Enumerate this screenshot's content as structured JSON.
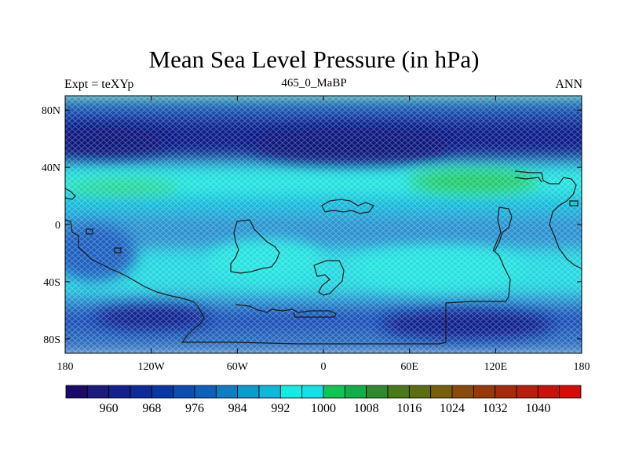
{
  "title": "Mean Sea Level Pressure (in hPa)",
  "left_string": "Expt = teXYp",
  "center_string": "465_0_MaBP",
  "right_string": "ANN",
  "axes": {
    "x_ticks": [
      {
        "value": -180,
        "label": "180"
      },
      {
        "value": -120,
        "label": "120W"
      },
      {
        "value": -60,
        "label": "60W"
      },
      {
        "value": 0,
        "label": "0"
      },
      {
        "value": 60,
        "label": "60E"
      },
      {
        "value": 120,
        "label": "120E"
      },
      {
        "value": 180,
        "label": "180"
      }
    ],
    "y_ticks": [
      {
        "value": 80,
        "label": "80N"
      },
      {
        "value": 40,
        "label": "40N"
      },
      {
        "value": 0,
        "label": "0"
      },
      {
        "value": -40,
        "label": "40S"
      },
      {
        "value": -80,
        "label": "80S"
      }
    ],
    "lon_range": [
      -180,
      180
    ],
    "lat_range": [
      -90,
      90
    ]
  },
  "colorbar": {
    "colors": [
      "#1a0a6b",
      "#1a1a80",
      "#14208f",
      "#0f2a9c",
      "#0a37a8",
      "#0b4db5",
      "#0a62bd",
      "#0c7ec6",
      "#0a9bd0",
      "#0fb8db",
      "#13ece3",
      "#14e0e8",
      "#10c553",
      "#0fb04a",
      "#2e8a2a",
      "#4a7a18",
      "#5c6e10",
      "#7a5f0a",
      "#8a4a08",
      "#9a3808",
      "#a82a0a",
      "#b81e0c",
      "#c8120e",
      "#d80a0a"
    ],
    "labels": [
      {
        "after_box": 1,
        "text": "960"
      },
      {
        "after_box": 3,
        "text": "968"
      },
      {
        "after_box": 5,
        "text": "976"
      },
      {
        "after_box": 7,
        "text": "984"
      },
      {
        "after_box": 9,
        "text": "992"
      },
      {
        "after_box": 11,
        "text": "1000"
      },
      {
        "after_box": 13,
        "text": "1008"
      },
      {
        "after_box": 15,
        "text": "1016"
      },
      {
        "after_box": 17,
        "text": "1024"
      },
      {
        "after_box": 19,
        "text": "1032"
      },
      {
        "after_box": 21,
        "text": "1040"
      }
    ]
  },
  "field_colors": {
    "deep_low": "#0d1a8a",
    "low": "#1f4fb8",
    "mid_low": "#2a78c8",
    "mid": "#19a6d8",
    "high": "#24e3e0",
    "green_high": "#20c860"
  },
  "bands": [
    {
      "lat_top": 90,
      "lat_bottom": 84,
      "color": "#1aa6a0"
    },
    {
      "lat_top": 84,
      "lat_bottom": 72,
      "color": "#1f4fb8"
    },
    {
      "lat_top": 72,
      "lat_bottom": 44,
      "color": "#0d1a8a"
    },
    {
      "lat_top": 44,
      "lat_bottom": 38,
      "color": "#2a78c8"
    },
    {
      "lat_top": 38,
      "lat_bottom": 18,
      "color": "#24e3e0"
    },
    {
      "lat_top": 18,
      "lat_bottom": 4,
      "color": "#19b8dc"
    },
    {
      "lat_top": 4,
      "lat_bottom": -20,
      "color": "#2a90d0"
    },
    {
      "lat_top": -20,
      "lat_bottom": -50,
      "color": "#24d8e0"
    },
    {
      "lat_top": -50,
      "lat_bottom": -60,
      "color": "#2a90d0"
    },
    {
      "lat_top": -60,
      "lat_bottom": -78,
      "color": "#1f4fb8"
    },
    {
      "lat_top": -78,
      "lat_bottom": -90,
      "color": "#2a70c0"
    }
  ],
  "highs": [
    {
      "lon": 105,
      "lat": 30,
      "rlon": 45,
      "rlat": 8,
      "color": "#20c860"
    },
    {
      "lon": 105,
      "lat": -32,
      "rlon": 30,
      "rlat": 8,
      "color": "#20c860"
    },
    {
      "lon": -140,
      "lat": 26,
      "rlon": 40,
      "rlat": 4,
      "color": "#2ad070"
    },
    {
      "lon": -40,
      "lat": -25,
      "rlon": 40,
      "rlat": 15,
      "color": "#24e3e0"
    },
    {
      "lon": 80,
      "lat": -30,
      "rlon": 60,
      "rlat": 15,
      "color": "#24e3e0"
    }
  ],
  "lows": [
    {
      "lon": -150,
      "lat": 58,
      "rlon": 40,
      "rlat": 10,
      "color": "#0a127a"
    },
    {
      "lon": 20,
      "lat": 55,
      "rlon": 70,
      "rlat": 12,
      "color": "#0a127a"
    },
    {
      "lon": 100,
      "lat": -70,
      "rlon": 60,
      "rlat": 10,
      "color": "#0d1a8a"
    },
    {
      "lon": -120,
      "lat": -65,
      "rlon": 40,
      "rlat": 8,
      "color": "#0d1a8a"
    },
    {
      "lon": -160,
      "lat": -20,
      "rlon": 30,
      "rlat": 20,
      "color": "#1f5fc0"
    }
  ]
}
